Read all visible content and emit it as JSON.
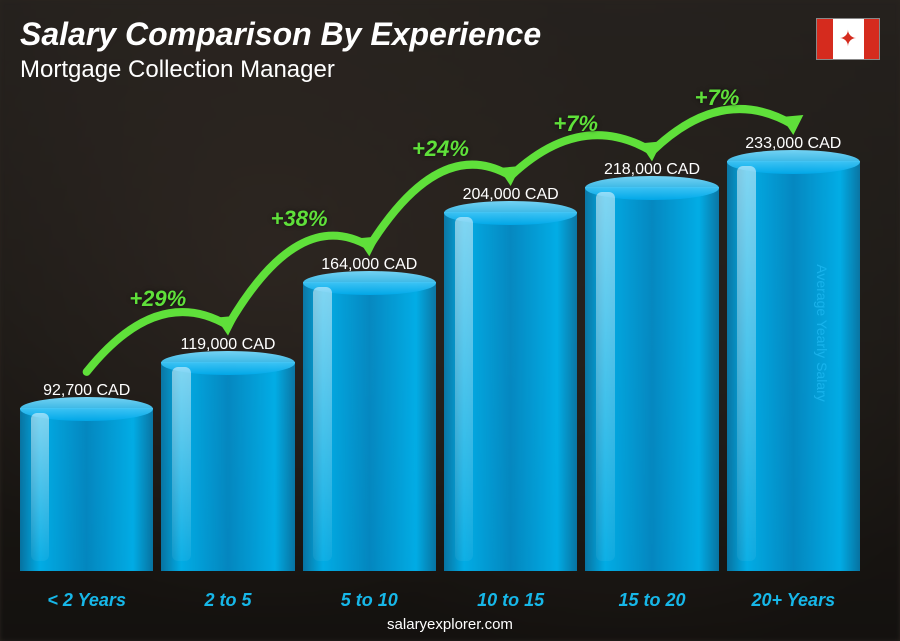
{
  "title": "Salary Comparison By Experience",
  "subtitle": "Mortgage Collection Manager",
  "ylabel": "Average Yearly Salary",
  "source": "salaryexplorer.com",
  "flag": {
    "country": "Canada",
    "band_color": "#d52b1e",
    "bg": "#ffffff"
  },
  "chart": {
    "type": "bar",
    "currency": "CAD",
    "max_value": 233000,
    "bar_color": "#009add",
    "bar_highlight": "#17b7e8",
    "label_color": "#ffffff",
    "xlabel_color": "#17b7e8",
    "arrow_color": "#5fe03a",
    "background": "#2a2520",
    "title_fontsize": 32,
    "subtitle_fontsize": 24,
    "value_fontsize": 16,
    "xlabel_fontsize": 18,
    "delta_fontsize": 22,
    "bars": [
      {
        "category": "< 2 Years",
        "value": 92700,
        "label": "92,700 CAD"
      },
      {
        "category": "2 to 5",
        "value": 119000,
        "label": "119,000 CAD"
      },
      {
        "category": "5 to 10",
        "value": 164000,
        "label": "164,000 CAD"
      },
      {
        "category": "10 to 15",
        "value": 204000,
        "label": "204,000 CAD"
      },
      {
        "category": "15 to 20",
        "value": 218000,
        "label": "218,000 CAD"
      },
      {
        "category": "20+ Years",
        "value": 233000,
        "label": "233,000 CAD"
      }
    ],
    "deltas": [
      {
        "from": 0,
        "to": 1,
        "pct": "+29%"
      },
      {
        "from": 1,
        "to": 2,
        "pct": "+38%"
      },
      {
        "from": 2,
        "to": 3,
        "pct": "+24%"
      },
      {
        "from": 3,
        "to": 4,
        "pct": "+7%"
      },
      {
        "from": 4,
        "to": 5,
        "pct": "+7%"
      }
    ]
  }
}
